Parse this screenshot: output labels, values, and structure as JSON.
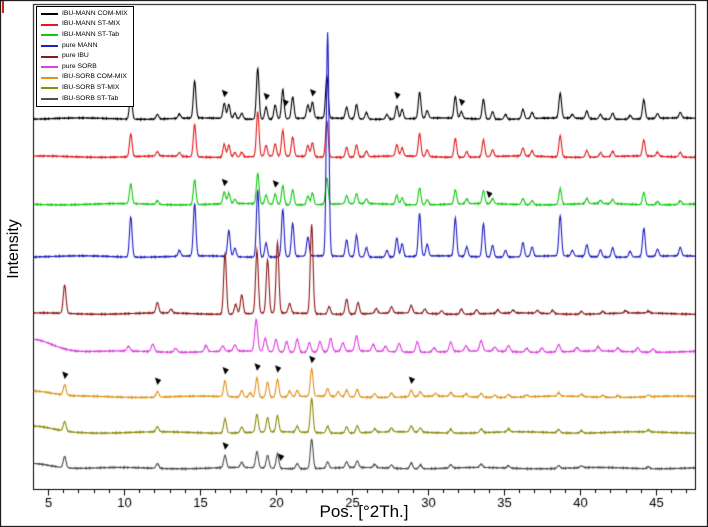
{
  "figure": {
    "corner_mark_color": "#cf2121"
  },
  "chart_data": {
    "type": "line",
    "title": "",
    "xlabel": "Pos. [°2Th.]",
    "ylabel": "Intensity",
    "x_range": [
      4.05,
      47.6
    ],
    "x_ticks": [
      5,
      10,
      15,
      20,
      25,
      30,
      35,
      40,
      45
    ],
    "x_minor_tick_step": 1,
    "ylim": [
      0,
      1020
    ],
    "y_axis_note": "arbitrary intensity units, no tick labels shown",
    "grid": false,
    "legend_position": "top-left",
    "marker_color": "#000000",
    "series": [
      {
        "name": "IBU-MANN COM-MIX",
        "color": "#000000",
        "baseline": 780,
        "seed": 1,
        "peak_width": 0.085,
        "noise": 1.6,
        "peaks": [
          [
            10.45,
            55
          ],
          [
            12.2,
            10
          ],
          [
            13.65,
            9
          ],
          [
            14.65,
            78
          ],
          [
            16.6,
            32
          ],
          [
            16.9,
            30
          ],
          [
            17.3,
            12
          ],
          [
            17.75,
            12
          ],
          [
            18.8,
            108
          ],
          [
            19.35,
            26
          ],
          [
            19.95,
            30
          ],
          [
            20.45,
            62
          ],
          [
            21.1,
            46
          ],
          [
            22.1,
            28
          ],
          [
            22.4,
            34
          ],
          [
            23.35,
            88
          ],
          [
            24.65,
            24
          ],
          [
            25.3,
            30
          ],
          [
            25.95,
            14
          ],
          [
            27.3,
            10
          ],
          [
            27.95,
            28
          ],
          [
            28.3,
            20
          ],
          [
            29.45,
            55
          ],
          [
            29.95,
            16
          ],
          [
            31.8,
            46
          ],
          [
            32.2,
            14
          ],
          [
            33.65,
            42
          ],
          [
            34.25,
            16
          ],
          [
            35.1,
            10
          ],
          [
            36.25,
            20
          ],
          [
            36.85,
            13
          ],
          [
            38.7,
            52
          ],
          [
            39.5,
            8
          ],
          [
            40.45,
            16
          ],
          [
            41.35,
            10
          ],
          [
            42.15,
            13
          ],
          [
            43.3,
            8
          ],
          [
            44.2,
            40
          ],
          [
            45.1,
            10
          ],
          [
            46.6,
            12
          ]
        ],
        "markers": [
          16.6,
          19.35,
          20.6,
          22.4,
          27.95,
          32.2
        ]
      },
      {
        "name": "IBU-MANN ST-MIX",
        "color": "#e01b1b",
        "baseline": 700,
        "seed": 2,
        "peak_width": 0.085,
        "noise": 1.6,
        "peaks": [
          [
            10.45,
            48
          ],
          [
            12.2,
            9
          ],
          [
            13.65,
            8
          ],
          [
            14.65,
            68
          ],
          [
            16.6,
            28
          ],
          [
            16.9,
            26
          ],
          [
            17.3,
            10
          ],
          [
            17.75,
            10
          ],
          [
            18.8,
            94
          ],
          [
            19.35,
            23
          ],
          [
            19.95,
            26
          ],
          [
            20.45,
            54
          ],
          [
            21.1,
            40
          ],
          [
            22.1,
            24
          ],
          [
            22.4,
            30
          ],
          [
            23.35,
            76
          ],
          [
            24.65,
            21
          ],
          [
            25.3,
            26
          ],
          [
            25.95,
            12
          ],
          [
            27.95,
            24
          ],
          [
            28.3,
            17
          ],
          [
            29.45,
            48
          ],
          [
            29.95,
            14
          ],
          [
            31.8,
            40
          ],
          [
            32.55,
            12
          ],
          [
            33.65,
            36
          ],
          [
            34.25,
            14
          ],
          [
            36.25,
            17
          ],
          [
            36.85,
            11
          ],
          [
            38.7,
            45
          ],
          [
            40.45,
            14
          ],
          [
            41.35,
            9
          ],
          [
            42.15,
            11
          ],
          [
            44.2,
            34
          ],
          [
            45.1,
            9
          ],
          [
            46.6,
            10
          ]
        ],
        "markers": []
      },
      {
        "name": "IBU-MANN ST-Tab",
        "color": "#12c912",
        "baseline": 600,
        "seed": 3,
        "peak_width": 0.085,
        "noise": 1.6,
        "peaks": [
          [
            10.45,
            42
          ],
          [
            12.2,
            8
          ],
          [
            14.65,
            52
          ],
          [
            16.6,
            25
          ],
          [
            16.9,
            22
          ],
          [
            17.3,
            9
          ],
          [
            18.8,
            64
          ],
          [
            19.35,
            19
          ],
          [
            19.95,
            22
          ],
          [
            20.45,
            40
          ],
          [
            21.1,
            32
          ],
          [
            22.1,
            19
          ],
          [
            22.4,
            25
          ],
          [
            23.35,
            56
          ],
          [
            24.65,
            17
          ],
          [
            25.3,
            21
          ],
          [
            25.95,
            10
          ],
          [
            27.95,
            19
          ],
          [
            28.3,
            14
          ],
          [
            29.45,
            36
          ],
          [
            29.95,
            11
          ],
          [
            31.8,
            30
          ],
          [
            32.55,
            10
          ],
          [
            33.65,
            27
          ],
          [
            34.25,
            11
          ],
          [
            36.25,
            13
          ],
          [
            36.85,
            9
          ],
          [
            38.7,
            33
          ],
          [
            40.45,
            11
          ],
          [
            41.35,
            7
          ],
          [
            42.15,
            9
          ],
          [
            44.2,
            26
          ],
          [
            45.1,
            7
          ],
          [
            46.6,
            8
          ]
        ],
        "markers": [
          16.6,
          19.95,
          34.0
        ]
      },
      {
        "name": "pure MANN",
        "color": "#1f1fc2",
        "baseline": 490,
        "seed": 4,
        "peak_width": 0.085,
        "noise": 1.6,
        "peaks": [
          [
            10.45,
            85
          ],
          [
            13.65,
            12
          ],
          [
            14.65,
            110
          ],
          [
            16.9,
            55
          ],
          [
            17.3,
            18
          ],
          [
            18.8,
            140
          ],
          [
            19.35,
            30
          ],
          [
            20.45,
            100
          ],
          [
            21.1,
            70
          ],
          [
            22.1,
            40
          ],
          [
            23.4,
            470
          ],
          [
            24.65,
            35
          ],
          [
            25.3,
            45
          ],
          [
            25.95,
            20
          ],
          [
            27.3,
            14
          ],
          [
            27.95,
            40
          ],
          [
            28.3,
            28
          ],
          [
            29.45,
            90
          ],
          [
            29.95,
            25
          ],
          [
            31.8,
            80
          ],
          [
            32.55,
            20
          ],
          [
            33.65,
            70
          ],
          [
            34.25,
            25
          ],
          [
            35.1,
            14
          ],
          [
            36.25,
            30
          ],
          [
            36.85,
            20
          ],
          [
            38.7,
            85
          ],
          [
            39.5,
            12
          ],
          [
            40.45,
            25
          ],
          [
            41.35,
            15
          ],
          [
            42.15,
            20
          ],
          [
            43.3,
            12
          ],
          [
            44.2,
            60
          ],
          [
            45.1,
            15
          ],
          [
            46.6,
            18
          ]
        ],
        "markers": []
      },
      {
        "name": "pure IBU",
        "color": "#8b1a1a",
        "baseline": 370,
        "seed": 5,
        "peak_width": 0.09,
        "noise": 1.6,
        "peaks": [
          [
            6.1,
            60
          ],
          [
            12.2,
            22
          ],
          [
            13.1,
            8
          ],
          [
            16.65,
            128
          ],
          [
            17.35,
            20
          ],
          [
            17.75,
            40
          ],
          [
            18.75,
            132
          ],
          [
            19.45,
            112
          ],
          [
            20.1,
            148
          ],
          [
            20.9,
            20
          ],
          [
            22.35,
            188
          ],
          [
            23.5,
            16
          ],
          [
            24.65,
            32
          ],
          [
            25.4,
            24
          ],
          [
            26.6,
            10
          ],
          [
            27.6,
            13
          ],
          [
            28.9,
            16
          ],
          [
            29.8,
            9
          ],
          [
            30.9,
            7
          ],
          [
            32.2,
            11
          ],
          [
            33.2,
            9
          ],
          [
            34.6,
            7
          ],
          [
            35.6,
            6
          ],
          [
            37.2,
            6
          ],
          [
            38.2,
            7
          ],
          [
            40.1,
            6
          ],
          [
            41.5,
            5
          ],
          [
            43.0,
            5
          ],
          [
            44.5,
            4
          ]
        ],
        "markers": []
      },
      {
        "name": "pure SORB",
        "color": "#df3fdf",
        "baseline": 290,
        "seed": 6,
        "peak_width": 0.1,
        "noise": 1.6,
        "peaks": [
          [
            4.0,
            26,
            1.3
          ],
          [
            10.3,
            10
          ],
          [
            11.9,
            16
          ],
          [
            13.4,
            8
          ],
          [
            15.4,
            13
          ],
          [
            16.5,
            11
          ],
          [
            17.3,
            13
          ],
          [
            18.7,
            66
          ],
          [
            19.3,
            28
          ],
          [
            20.0,
            26
          ],
          [
            20.7,
            22
          ],
          [
            21.4,
            28
          ],
          [
            22.2,
            20
          ],
          [
            22.9,
            22
          ],
          [
            23.6,
            28
          ],
          [
            24.4,
            18
          ],
          [
            25.3,
            32
          ],
          [
            26.4,
            14
          ],
          [
            27.2,
            11
          ],
          [
            28.1,
            18
          ],
          [
            29.3,
            22
          ],
          [
            30.4,
            9
          ],
          [
            31.5,
            20
          ],
          [
            32.5,
            11
          ],
          [
            33.5,
            22
          ],
          [
            34.4,
            9
          ],
          [
            35.3,
            13
          ],
          [
            36.5,
            8
          ],
          [
            37.5,
            9
          ],
          [
            38.6,
            16
          ],
          [
            39.8,
            8
          ],
          [
            41.2,
            9
          ],
          [
            42.5,
            7
          ],
          [
            43.8,
            9
          ],
          [
            44.8,
            7
          ]
        ],
        "markers": []
      },
      {
        "name": "IBU-SORB COM-MIX",
        "color": "#e0941e",
        "baseline": 195,
        "seed": 7,
        "peak_width": 0.09,
        "noise": 1.6,
        "peaks": [
          [
            4.0,
            13,
            1.2
          ],
          [
            6.1,
            22
          ],
          [
            12.2,
            12
          ],
          [
            16.65,
            34
          ],
          [
            17.75,
            14
          ],
          [
            18.3,
            10
          ],
          [
            18.75,
            42
          ],
          [
            19.45,
            32
          ],
          [
            20.1,
            38
          ],
          [
            20.9,
            12
          ],
          [
            21.4,
            13
          ],
          [
            22.35,
            58
          ],
          [
            23.4,
            16
          ],
          [
            24.1,
            10
          ],
          [
            24.65,
            14
          ],
          [
            25.35,
            16
          ],
          [
            26.5,
            8
          ],
          [
            27.6,
            9
          ],
          [
            28.9,
            14
          ],
          [
            29.5,
            10
          ],
          [
            30.5,
            6
          ],
          [
            31.5,
            8
          ],
          [
            32.5,
            6
          ],
          [
            33.5,
            8
          ],
          [
            34.4,
            5
          ],
          [
            35.3,
            6
          ],
          [
            36.5,
            4
          ],
          [
            38.6,
            7
          ],
          [
            40.1,
            5
          ],
          [
            41.5,
            4
          ],
          [
            42.5,
            4
          ],
          [
            44.5,
            4
          ]
        ],
        "markers": [
          6.1,
          12.2,
          16.65,
          18.75,
          20.1,
          22.35,
          28.9
        ]
      },
      {
        "name": "IBU-SORB ST-MIX",
        "color": "#8c8c10",
        "baseline": 120,
        "seed": 8,
        "peak_width": 0.09,
        "noise": 1.6,
        "peaks": [
          [
            4.0,
            12,
            1.2
          ],
          [
            6.1,
            20
          ],
          [
            12.2,
            11
          ],
          [
            16.65,
            30
          ],
          [
            17.75,
            12
          ],
          [
            18.75,
            38
          ],
          [
            19.45,
            30
          ],
          [
            20.1,
            34
          ],
          [
            21.4,
            12
          ],
          [
            22.35,
            72
          ],
          [
            23.4,
            14
          ],
          [
            24.65,
            13
          ],
          [
            25.35,
            15
          ],
          [
            26.5,
            7
          ],
          [
            27.6,
            8
          ],
          [
            28.9,
            13
          ],
          [
            29.5,
            9
          ],
          [
            31.5,
            8
          ],
          [
            33.5,
            8
          ],
          [
            35.3,
            6
          ],
          [
            38.6,
            7
          ],
          [
            40.1,
            5
          ],
          [
            44.5,
            4
          ]
        ],
        "markers": []
      },
      {
        "name": "IBU-SORB ST-Tab",
        "color": "#4f4f4f",
        "baseline": 45,
        "seed": 9,
        "peak_width": 0.09,
        "noise": 1.6,
        "peaks": [
          [
            4.0,
            10,
            1.2
          ],
          [
            6.1,
            24
          ],
          [
            12.2,
            10
          ],
          [
            16.65,
            26
          ],
          [
            17.75,
            11
          ],
          [
            18.75,
            34
          ],
          [
            19.45,
            27
          ],
          [
            20.1,
            30
          ],
          [
            21.4,
            11
          ],
          [
            22.35,
            62
          ],
          [
            23.4,
            13
          ],
          [
            24.65,
            12
          ],
          [
            25.35,
            14
          ],
          [
            26.5,
            7
          ],
          [
            27.6,
            7
          ],
          [
            28.9,
            12
          ],
          [
            29.5,
            8
          ],
          [
            31.5,
            7
          ],
          [
            33.5,
            7
          ],
          [
            35.3,
            5
          ],
          [
            38.6,
            6
          ],
          [
            40.1,
            4
          ],
          [
            44.5,
            4
          ]
        ],
        "markers": [
          16.65,
          20.3
        ]
      }
    ]
  }
}
